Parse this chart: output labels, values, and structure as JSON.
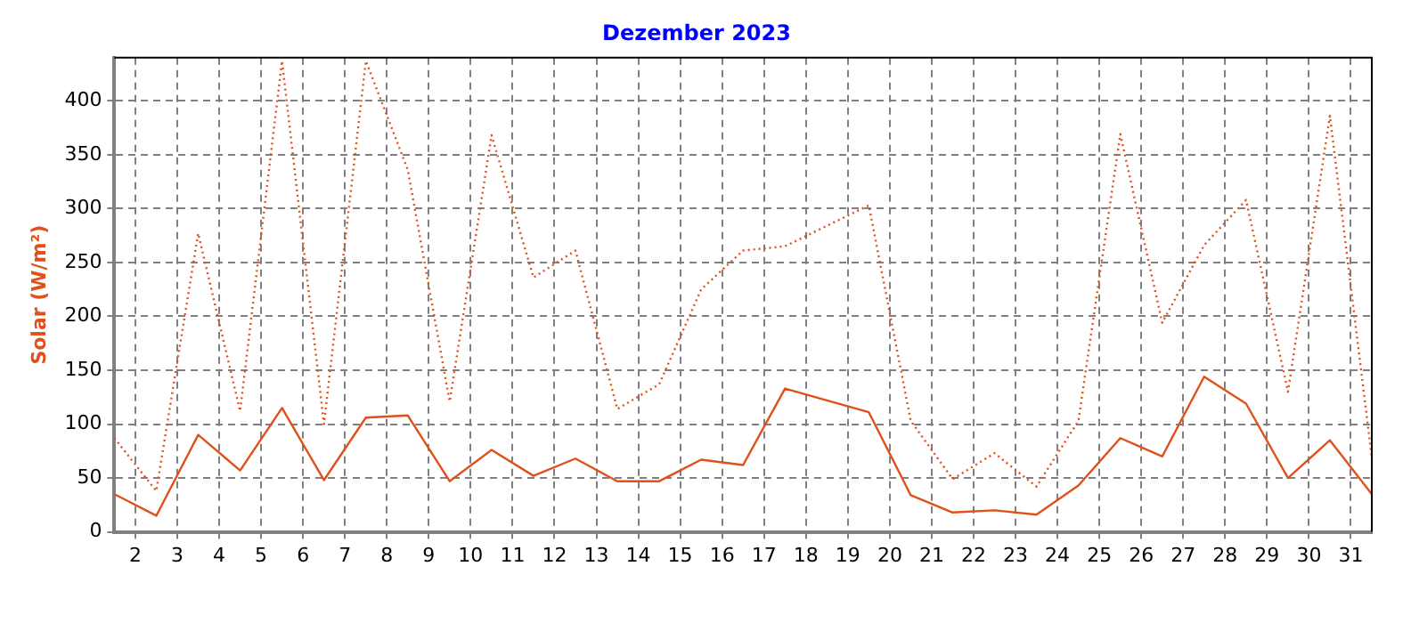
{
  "chart_data": {
    "type": "line",
    "title": "Dezember 2023",
    "ylabel": "Solar (W/m²)",
    "x": [
      1.5,
      2.5,
      3.5,
      4.5,
      5.5,
      6.5,
      7.5,
      8.5,
      9.5,
      10.5,
      11.5,
      12.5,
      13.5,
      14.5,
      15.5,
      16.5,
      17.5,
      18.5,
      19.5,
      20.5,
      21.5,
      22.5,
      23.5,
      24.5,
      25.5,
      26.5,
      27.5,
      28.5,
      29.5,
      30.5,
      31.5
    ],
    "series": [
      {
        "color": "#e0501a",
        "line_style": "dotted",
        "values": [
          87,
          38,
          277,
          112,
          437,
          100,
          437,
          336,
          121,
          368,
          236,
          261,
          114,
          137,
          225,
          261,
          265,
          284,
          303,
          103,
          49,
          73,
          42,
          103,
          369,
          194,
          266,
          308,
          130,
          386,
          69
        ]
      },
      {
        "color": "#e0501a",
        "line_style": "solid",
        "values": [
          35,
          15,
          90,
          57,
          115,
          48,
          106,
          108,
          47,
          76,
          52,
          68,
          47,
          47,
          67,
          62,
          133,
          122,
          111,
          34,
          18,
          20,
          16,
          43,
          87,
          70,
          144,
          119,
          50,
          85,
          35
        ]
      }
    ],
    "xlim": [
      1.5,
      31.5
    ],
    "xticks": [
      2,
      3,
      4,
      5,
      6,
      7,
      8,
      9,
      10,
      11,
      12,
      13,
      14,
      15,
      16,
      17,
      18,
      19,
      20,
      21,
      22,
      23,
      24,
      25,
      26,
      27,
      28,
      29,
      30,
      31
    ],
    "ylim": [
      0,
      440
    ],
    "yticks": [
      0,
      50,
      100,
      150,
      200,
      250,
      300,
      350,
      400
    ],
    "grid": true,
    "legend": false,
    "marker": "none"
  }
}
